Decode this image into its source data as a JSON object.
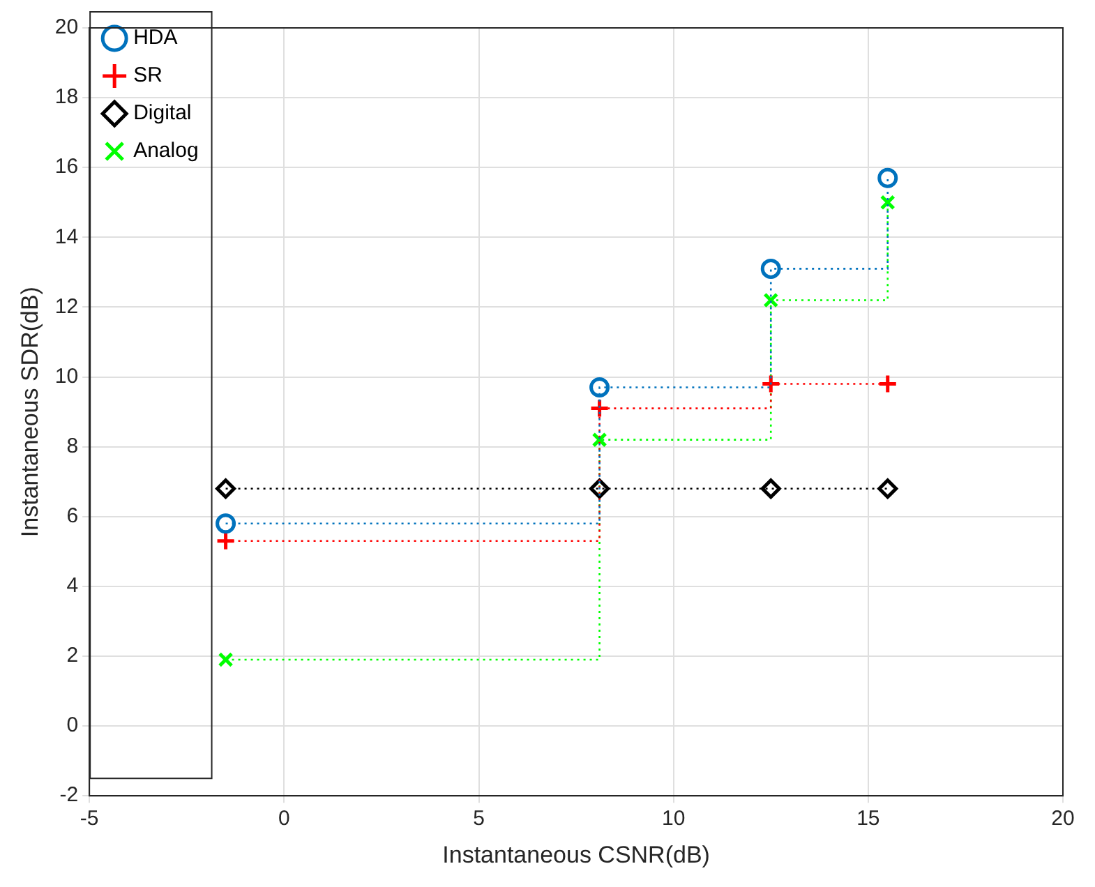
{
  "chart_data": {
    "type": "step",
    "xlabel": "Instantaneous CSNR(dB)",
    "ylabel": "Instantaneous SDR(dB)",
    "x": [
      -1.5,
      8.1,
      12.5,
      15.5
    ],
    "series": [
      {
        "name": "HDA",
        "color": "#0072bd",
        "marker": "circle",
        "values": [
          5.8,
          9.7,
          13.1,
          15.7
        ]
      },
      {
        "name": "SR",
        "color": "#ff0000",
        "marker": "cross",
        "values": [
          5.3,
          9.1,
          9.8,
          9.8
        ]
      },
      {
        "name": "Digital",
        "color": "#000000",
        "marker": "diamond",
        "values": [
          6.8,
          6.8,
          6.8,
          6.8
        ]
      },
      {
        "name": "Analog",
        "color": "#00ff00",
        "marker": "x",
        "values": [
          1.9,
          8.2,
          12.2,
          15.0
        ]
      }
    ],
    "xlim": [
      -5,
      20
    ],
    "xticks": [
      -5,
      0,
      5,
      10,
      15,
      20
    ],
    "ylim": [
      -2,
      20
    ],
    "yticks": [
      -2,
      0,
      2,
      4,
      6,
      8,
      10,
      12,
      14,
      16,
      18,
      20
    ],
    "grid": true,
    "legend": "top left",
    "line_style": "dotted"
  }
}
